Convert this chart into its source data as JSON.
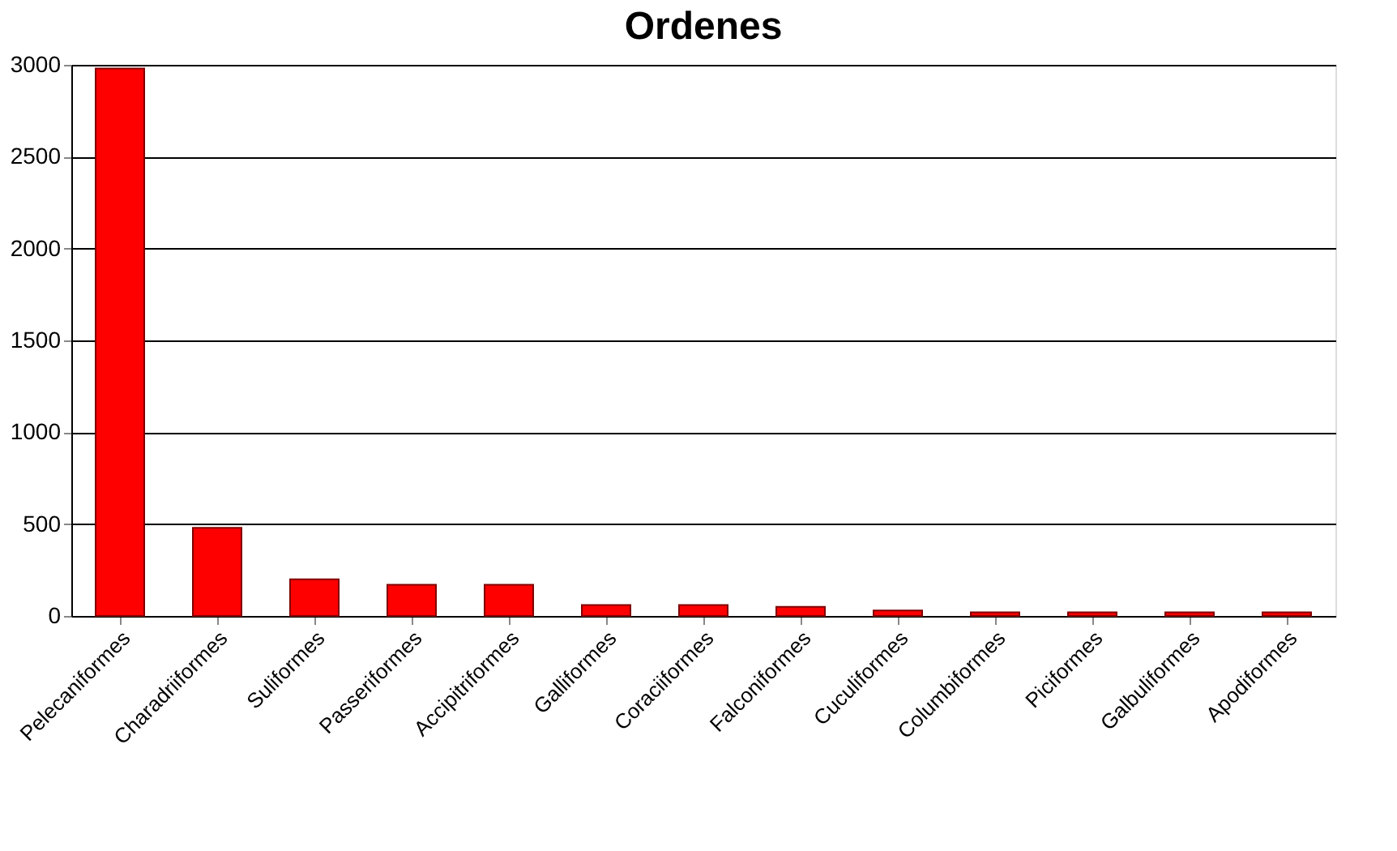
{
  "chart_data": {
    "type": "bar",
    "title": "Ordenes",
    "categories": [
      "Pelecaniformes",
      "Charadriiformes",
      "Suliformes",
      "Passeriformes",
      "Accipitriformes",
      "Galliformes",
      "Coraciiformes",
      "Falconiformes",
      "Cuculiformes",
      "Columbiformes",
      "Piciformes",
      "Galbuliformes",
      "Apodiformes"
    ],
    "values": [
      2980,
      480,
      200,
      170,
      170,
      60,
      60,
      50,
      30,
      20,
      20,
      20,
      20
    ],
    "color": "#ff0000",
    "ylim": [
      0,
      3000
    ],
    "yticks": [
      0,
      500,
      1000,
      1500,
      2000,
      2500,
      3000
    ],
    "grid": "y"
  }
}
